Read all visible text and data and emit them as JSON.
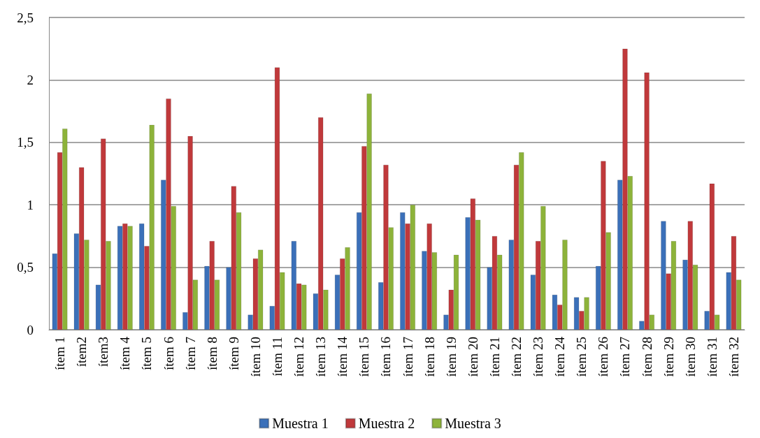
{
  "chart_data": {
    "type": "bar",
    "categories": [
      "ítem 1",
      "ítem2",
      "ítem3",
      "ítem 4",
      "ítem 5",
      "ítem 6",
      "ítem 7",
      "ítem 8",
      "ítem 9",
      "ítem 10",
      "ítem 11",
      "ítem 12",
      "ítem 13",
      "ítem 14",
      "ítem 15",
      "ítem 16",
      "ítem 17",
      "ítem 18",
      "ítem 19",
      "ítem 20",
      "ítem 21",
      "ítem 22",
      "ítem 23",
      "ítem 24",
      "ítem 25",
      "ítem 26",
      "ítem 27",
      "ítem 28",
      "ítem 29",
      "ítem 30",
      "ítem 31",
      "ítem 32"
    ],
    "series": [
      {
        "name": "Muestra 1",
        "color": "#3b70b9",
        "values": [
          0.61,
          0.77,
          0.36,
          0.83,
          0.85,
          1.2,
          0.14,
          0.51,
          0.5,
          0.12,
          0.19,
          0.71,
          0.29,
          0.44,
          0.94,
          0.38,
          0.94,
          0.63,
          0.12,
          0.9,
          0.5,
          0.72,
          0.44,
          0.28,
          0.26,
          0.51,
          1.2,
          0.07,
          0.87,
          0.56,
          0.15,
          0.46
        ]
      },
      {
        "name": "Muestra 2",
        "color": "#c0393b",
        "values": [
          1.42,
          1.3,
          1.53,
          0.85,
          0.67,
          1.85,
          1.55,
          0.71,
          1.15,
          0.57,
          2.1,
          0.37,
          1.7,
          0.57,
          1.47,
          1.32,
          0.85,
          0.85,
          0.32,
          1.05,
          0.75,
          1.32,
          0.71,
          0.2,
          0.15,
          1.35,
          2.25,
          2.06,
          0.45,
          0.87,
          1.17,
          0.75
        ]
      },
      {
        "name": "Muestra 3",
        "color": "#8db33a",
        "values": [
          1.61,
          0.72,
          0.71,
          0.83,
          1.64,
          0.99,
          0.4,
          0.4,
          0.94,
          0.64,
          0.46,
          0.36,
          0.32,
          0.66,
          1.89,
          0.82,
          1.0,
          0.62,
          0.6,
          0.88,
          0.6,
          1.42,
          0.99,
          0.72,
          0.26,
          0.78,
          1.23,
          0.12,
          0.71,
          0.52,
          0.12,
          0.4
        ]
      }
    ],
    "ylim": [
      0,
      2.5
    ],
    "yticks": [
      0,
      {
        "value": 0.5,
        "label": "0,5"
      },
      1,
      {
        "value": 1.5,
        "label": "1,5"
      },
      2,
      {
        "value": 2.5,
        "label": "2,5"
      }
    ],
    "grid": "y",
    "legend": "bottom"
  }
}
